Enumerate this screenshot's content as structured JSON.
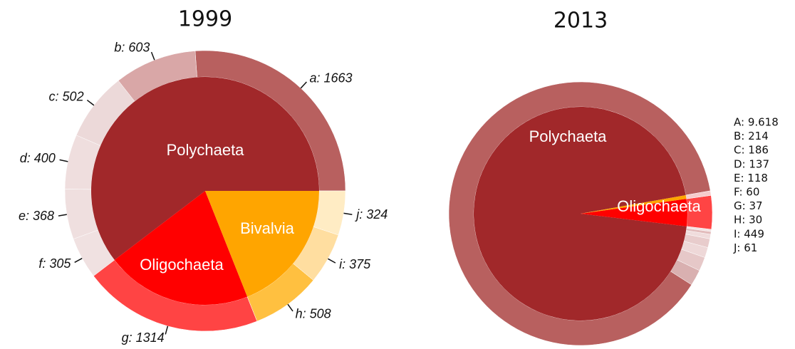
{
  "chart_data": [
    {
      "type": "sunburst",
      "title": "1999",
      "groups": [
        {
          "name": "Polychaeta",
          "color": "#a1282a",
          "labels": [
            "a: 1663",
            "b: 603",
            "c: 502",
            "d: 400",
            "e: 368",
            "f: 305"
          ],
          "values": [
            1663,
            603,
            502,
            400,
            368,
            305
          ],
          "colors": [
            "#b8605f",
            "#d9a7a7",
            "#ecd9d9",
            "#efdede",
            "#efdfdf",
            "#f0e1e1"
          ]
        },
        {
          "name": "Oligochaeta",
          "color": "#ff0000",
          "labels": [
            "g: 1314"
          ],
          "values": [
            1314
          ],
          "colors": [
            "#ff4444"
          ]
        },
        {
          "name": "Bivalvia",
          "color": "#ffa500",
          "labels": [
            "h: 508",
            "i: 375",
            "j: 324"
          ],
          "values": [
            508,
            375,
            324
          ],
          "colors": [
            "#ffc040",
            "#ffdea0",
            "#ffecc4"
          ]
        }
      ]
    },
    {
      "type": "sunburst",
      "title": "2013",
      "legend": "right",
      "groups": [
        {
          "name": "Polychaeta",
          "color": "#a1282a",
          "labels": [
            "A: 9.618",
            "B: 214",
            "C: 186",
            "D: 137",
            "E: 118",
            "F: 60",
            "G: 37",
            "H: 30"
          ],
          "values": [
            9618,
            214,
            186,
            137,
            118,
            60,
            37,
            30
          ],
          "colors": [
            "#b8605f",
            "#d9b0b0",
            "#e6c8c8",
            "#eed8d8",
            "#e8cccc",
            "#f0dcdc",
            "#e2bcbc",
            "#f2e2e2"
          ]
        },
        {
          "name": "Oligochaeta",
          "color": "#ff0000",
          "labels": [
            "I: 449"
          ],
          "values": [
            449
          ],
          "colors": [
            "#ff4444"
          ]
        },
        {
          "name": null,
          "color": "#ffa500",
          "labels": [
            "J: 61"
          ],
          "values": [
            61
          ],
          "colors": [
            "#f6cccc"
          ]
        }
      ]
    }
  ]
}
